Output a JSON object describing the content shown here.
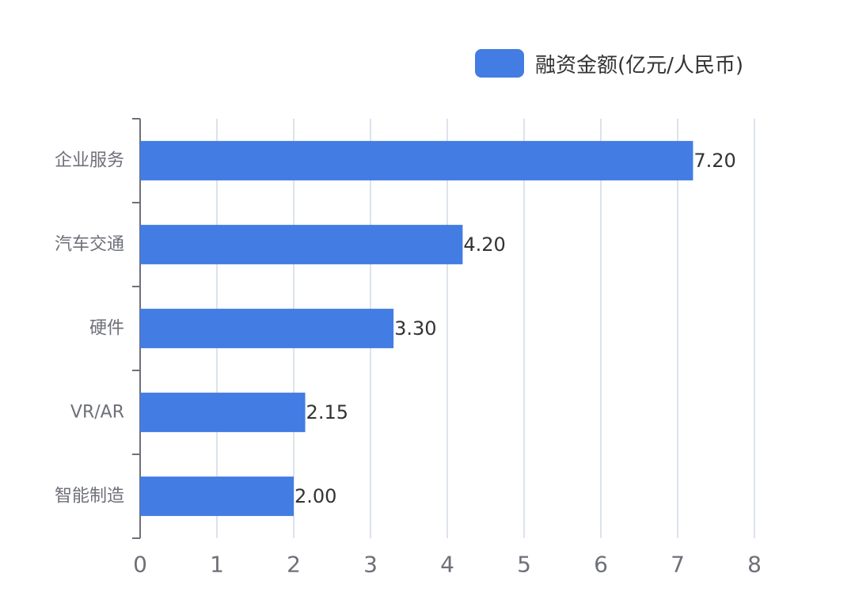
{
  "chart_data": {
    "type": "bar",
    "orientation": "horizontal",
    "categories": [
      "企业服务",
      "汽车交通",
      "硬件",
      "VR/AR",
      "智能制造"
    ],
    "series": [
      {
        "name": "融资金额(亿元/人民币)",
        "values": [
          7.2,
          4.2,
          3.3,
          2.15,
          2.0
        ],
        "value_labels": [
          "7.20",
          "4.20",
          "3.30",
          "2.15",
          "2.00"
        ]
      }
    ],
    "xlim": [
      0,
      8
    ],
    "x_ticks": [
      "0",
      "1",
      "2",
      "3",
      "4",
      "5",
      "6",
      "7",
      "8"
    ],
    "grid": "vertical",
    "legend_position": "top-right",
    "colors": {
      "bar": "#437ce2",
      "grid": "#dbe3ec",
      "axis": "#6e7079",
      "tick_label": "#6e7079",
      "value_label": "#333333"
    }
  }
}
